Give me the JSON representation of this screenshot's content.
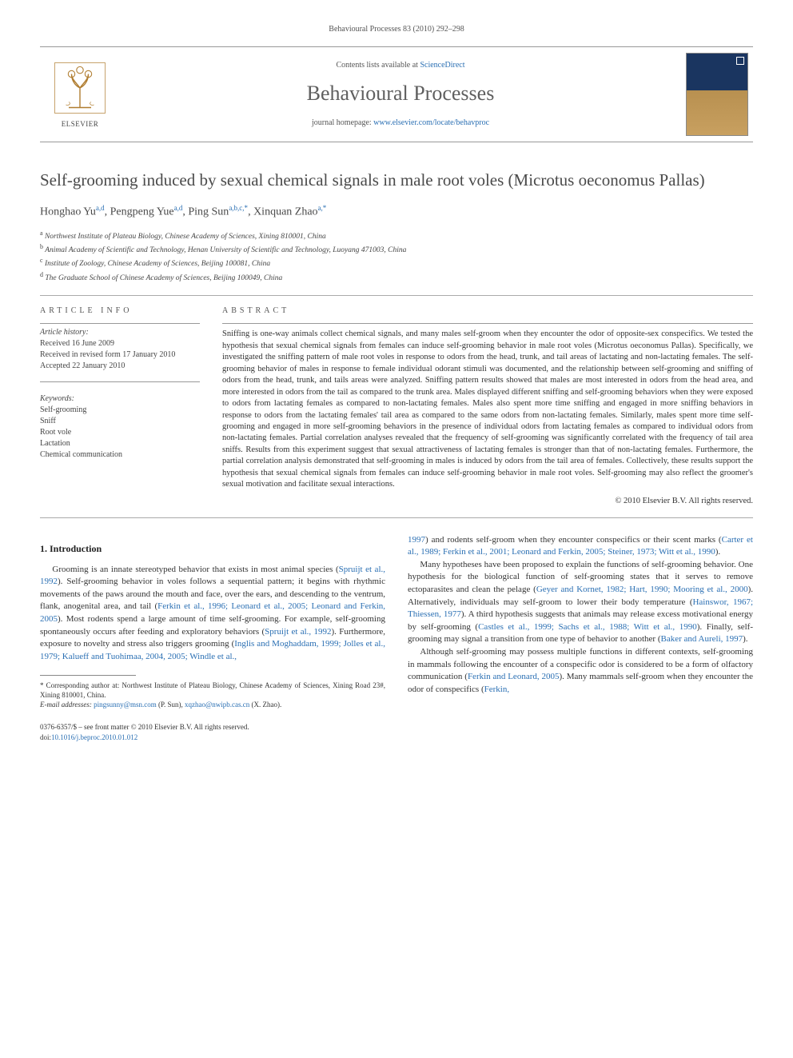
{
  "running_header": "Behavioural Processes 83 (2010) 292–298",
  "banner": {
    "contents_prefix": "Contents lists available at ",
    "contents_link": "ScienceDirect",
    "journal": "Behavioural Processes",
    "homepage_prefix": "journal homepage: ",
    "homepage_url": "www.elsevier.com/locate/behavproc",
    "elsevier": "ELSEVIER"
  },
  "title": "Self-grooming induced by sexual chemical signals in male root voles (Microtus oeconomus Pallas)",
  "authors_html": "Honghao Yu<sup>a,d</sup>, Pengpeng Yue<sup>a,d</sup>, Ping Sun<sup>a,b,c,*</sup>, Xinquan Zhao<sup>a,*</sup>",
  "affiliations": [
    "a Northwest Institute of Plateau Biology, Chinese Academy of Sciences, Xining 810001, China",
    "b Animal Academy of Scientific and Technology, Henan University of Scientific and Technology, Luoyang 471003, China",
    "c Institute of Zoology, Chinese Academy of Sciences, Beijing 100081, China",
    "d The Graduate School of Chinese Academy of Sciences, Beijing 100049, China"
  ],
  "info_label": "article info",
  "abstract_label": "abstract",
  "history": {
    "title": "Article history:",
    "received": "Received 16 June 2009",
    "revised": "Received in revised form 17 January 2010",
    "accepted": "Accepted 22 January 2010"
  },
  "keywords": {
    "title": "Keywords:",
    "items": [
      "Self-grooming",
      "Sniff",
      "Root vole",
      "Lactation",
      "Chemical communication"
    ]
  },
  "abstract": "Sniffing is one-way animals collect chemical signals, and many males self-groom when they encounter the odor of opposite-sex conspecifics. We tested the hypothesis that sexual chemical signals from females can induce self-grooming behavior in male root voles (Microtus oeconomus Pallas). Specifically, we investigated the sniffing pattern of male root voles in response to odors from the head, trunk, and tail areas of lactating and non-lactating females. The self-grooming behavior of males in response to female individual odorant stimuli was documented, and the relationship between self-grooming and sniffing of odors from the head, trunk, and tails areas were analyzed. Sniffing pattern results showed that males are most interested in odors from the head area, and more interested in odors from the tail as compared to the trunk area. Males displayed different sniffing and self-grooming behaviors when they were exposed to odors from lactating females as compared to non-lactating females. Males also spent more time sniffing and engaged in more sniffing behaviors in response to odors from the lactating females' tail area as compared to the same odors from non-lactating females. Similarly, males spent more time self-grooming and engaged in more self-grooming behaviors in the presence of individual odors from lactating females as compared to individual odors from non-lactating females. Partial correlation analyses revealed that the frequency of self-grooming was significantly correlated with the frequency of tail area sniffs. Results from this experiment suggest that sexual attractiveness of lactating females is stronger than that of non-lactating females. Furthermore, the partial correlation analysis demonstrated that self-grooming in males is induced by odors from the tail area of females. Collectively, these results support the hypothesis that sexual chemical signals from females can induce self-grooming behavior in male root voles. Self-grooming may also reflect the groomer's sexual motivation and facilitate sexual interactions.",
  "copyright": "© 2010 Elsevier B.V. All rights reserved.",
  "section1_title": "1. Introduction",
  "para1a": "Grooming is an innate stereotyped behavior that exists in most animal species (",
  "cite1": "Spruijt et al., 1992",
  "para1b": "). Self-grooming behavior in voles follows a sequential pattern; it begins with rhythmic movements of the paws around the mouth and face, over the ears, and descending to the ventrum, flank, anogenital area, and tail (",
  "cite2": "Ferkin et al., 1996; Leonard et al., 2005; Leonard and Ferkin, 2005",
  "para1c": "). Most rodents spend a large amount of time self-grooming. For example, self-grooming spontaneously occurs after feeding and exploratory behaviors (",
  "cite3": "Spruijt et al., 1992",
  "para1d": "). Furthermore, exposure to novelty and stress also triggers grooming (",
  "cite4": "Inglis and Moghaddam, 1999; Jolles et al., 1979; Kalueff and Tuohimaa, 2004, 2005; Windle et al.,",
  "para2pre": "",
  "cite5": "1997",
  "para2a": ") and rodents self-groom when they encounter conspecifics or their scent marks (",
  "cite6": "Carter et al., 1989; Ferkin et al., 2001; Leonard and Ferkin, 2005; Steiner, 1973; Witt et al., 1990",
  "para2b": ").",
  "para3a": "Many hypotheses have been proposed to explain the functions of self-grooming behavior. One hypothesis for the biological function of self-grooming states that it serves to remove ectoparasites and clean the pelage (",
  "cite7": "Geyer and Kornet, 1982; Hart, 1990; Mooring et al., 2000",
  "para3b": "). Alternatively, individuals may self-groom to lower their body temperature (",
  "cite8": "Hainswor, 1967; Thiessen, 1977",
  "para3c": "). A third hypothesis suggests that animals may release excess motivational energy by self-grooming (",
  "cite9": "Castles et al., 1999; Sachs et al., 1988; Witt et al., 1990",
  "para3d": "). Finally, self-grooming may signal a transition from one type of behavior to another (",
  "cite10": "Baker and Aureli, 1997",
  "para3e": ").",
  "para4a": "Although self-grooming may possess multiple functions in different contexts, self-grooming in mammals following the encounter of a conspecific odor is considered to be a form of olfactory communication (",
  "cite11": "Ferkin and Leonard, 2005",
  "para4b": "). Many mammals self-groom when they encounter the odor of conspecifics (",
  "cite12": "Ferkin,",
  "footnote": {
    "corr": "* Corresponding author at: Northwest Institute of Plateau Biology, Chinese Academy of Sciences, Xining Road 23#, Xining 810001, China.",
    "email_label": "E-mail addresses: ",
    "email1": "pingsunny@msn.com",
    "email1_who": " (P. Sun), ",
    "email2": "xqzhao@nwipb.cas.cn",
    "email2_who": " (X. Zhao)."
  },
  "footer": {
    "front": "0376-6357/$ – see front matter © 2010 Elsevier B.V. All rights reserved.",
    "doi_label": "doi:",
    "doi": "10.1016/j.beproc.2010.01.012"
  }
}
